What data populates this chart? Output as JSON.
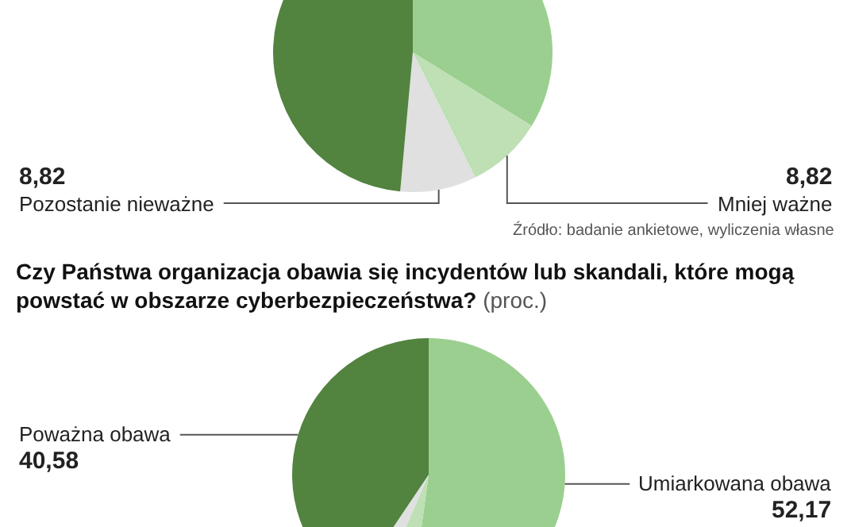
{
  "chart_data": [
    {
      "type": "pie",
      "categories": [
        null,
        "Mniej ważne",
        "Pozostanie nieważne",
        null
      ],
      "values": [
        33.8,
        8.82,
        8.82,
        48.56
      ],
      "value_labels": [
        null,
        "8,82",
        "8,82",
        null
      ],
      "colors": [
        "#9bcf8f",
        "#bfdfb5",
        "#e0e0e0",
        "#52833f"
      ],
      "annotations": [
        "Źródło: badanie ankietowe, wyliczenia własne"
      ]
    },
    {
      "type": "pie",
      "title": "Czy Państwa organizacja obawia się incydentów lub skandali, które mogą powstać w obszarze cyberbezpieczeństwa?",
      "subtitle": "(proc.)",
      "categories": [
        "Umiarkowana obawa",
        null,
        null,
        "Poważna obawa"
      ],
      "values": [
        52.17,
        4.35,
        2.9,
        40.58
      ],
      "value_labels": [
        "52,17",
        null,
        null,
        "40,58"
      ],
      "colors": [
        "#9bcf8f",
        "#bfdfb5",
        "#e0e0e0",
        "#52833f"
      ]
    }
  ]
}
